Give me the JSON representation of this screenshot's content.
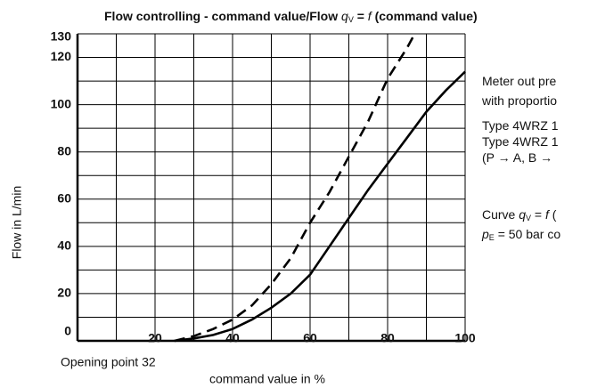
{
  "chart_data": {
    "type": "line",
    "title": [
      "Flow controlling - command value/Flow ",
      "q",
      "V",
      " = ",
      "f",
      " (command value)"
    ],
    "xlabel": "command value in %",
    "ylabel": "Flow in L/min",
    "annotation": "Opening point 32",
    "notes": [
      [
        "Meter out pre"
      ],
      [
        "with proportio"
      ],
      [
        "Type 4WRZ 1"
      ],
      [
        "Type 4WRZ 1"
      ],
      [
        "(P → A, B →"
      ],
      [
        "Curve ",
        "q",
        "V",
        " = ",
        "f",
        " ("
      ],
      [
        "p",
        "E",
        " = 50 bar co"
      ]
    ],
    "xlim": [
      0,
      100
    ],
    "ylim": [
      0,
      130
    ],
    "xticks": [
      20,
      40,
      60,
      80,
      100
    ],
    "yticks": [
      0,
      20,
      40,
      60,
      80,
      100,
      120,
      130
    ],
    "xgrid": [
      0,
      10,
      20,
      30,
      40,
      50,
      60,
      70,
      80,
      90,
      100
    ],
    "ygrid": [
      0,
      10,
      20,
      30,
      40,
      50,
      60,
      70,
      80,
      90,
      100,
      110,
      120,
      130
    ],
    "grid": true,
    "series": [
      {
        "color": "#000000",
        "style": "solid",
        "x": [
          25,
          30,
          35,
          40,
          45,
          50,
          55,
          60,
          65,
          70,
          75,
          80,
          85,
          90,
          95,
          100
        ],
        "values": [
          0,
          1,
          2.5,
          5,
          9,
          14,
          20,
          28,
          40,
          52,
          64,
          75,
          86,
          97,
          106,
          114
        ]
      },
      {
        "color": "#000000",
        "style": "dashed",
        "x": [
          25,
          30,
          35,
          40,
          45,
          50,
          55,
          60,
          65,
          70,
          75,
          80,
          85,
          87
        ],
        "values": [
          0,
          2,
          5,
          9,
          15,
          24,
          35,
          50,
          63,
          78,
          93,
          111,
          124,
          130
        ]
      }
    ]
  }
}
